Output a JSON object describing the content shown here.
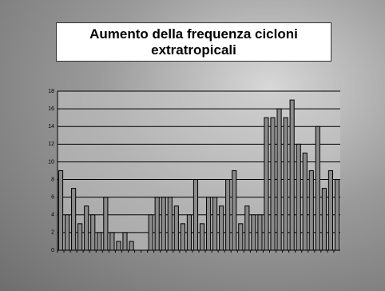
{
  "chart_data": {
    "type": "bar",
    "title": "Aumento della frequenza cicloni extratropicali",
    "values": [
      9,
      4,
      7,
      3,
      5,
      4,
      2,
      6,
      2,
      1,
      2,
      1,
      0,
      0,
      4,
      6,
      6,
      6,
      5,
      3,
      4,
      8,
      3,
      6,
      6,
      5,
      8,
      9,
      3,
      5,
      4,
      4,
      15,
      15,
      16,
      15,
      17,
      12,
      11,
      9,
      14,
      7,
      9,
      8
    ],
    "color": "#8a8a8a",
    "ylim": [
      0,
      18
    ],
    "yticks": [
      0,
      2,
      4,
      6,
      8,
      10,
      12,
      14,
      16,
      18
    ],
    "grid": true
  }
}
